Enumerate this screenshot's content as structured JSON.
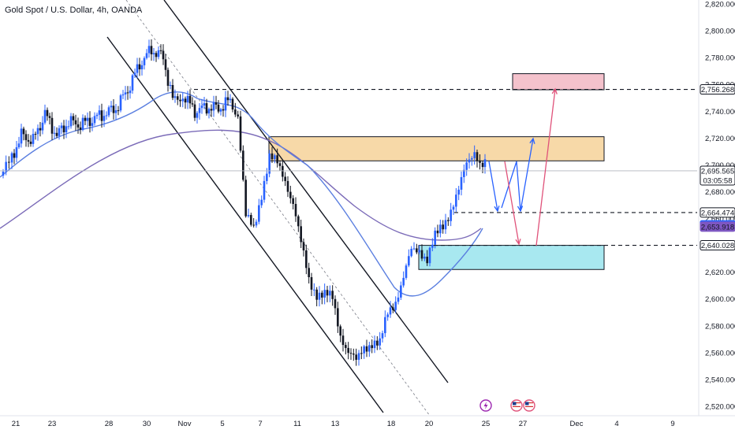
{
  "chart_data": {
    "type": "candlestick",
    "title": "Gold Spot / U.S. Dollar, 4h, OANDA",
    "ylim": [
      2520,
      2820
    ],
    "y_ticks": [
      2520,
      2540,
      2560,
      2580,
      2600,
      2620,
      2640,
      2660,
      2680,
      2700,
      2720,
      2740,
      2760,
      2780,
      2800,
      2820
    ],
    "x_tick_labels": [
      "21",
      "23",
      "28",
      "30",
      "Nov",
      "5",
      "7",
      "11",
      "13",
      "18",
      "20",
      "25",
      "27",
      "Dec",
      "4",
      "9"
    ],
    "price_labels": [
      {
        "value": 2756.268,
        "text": "2,756.268",
        "color": "#ffffff",
        "bg": "#ffffff"
      },
      {
        "value": 2695.565,
        "text": "2,695.565",
        "text2": "03:05:58",
        "color": "#ffffff",
        "bg": "#ffffff"
      },
      {
        "value": 2664.474,
        "text": "2,664.474",
        "color": "#ffffff",
        "bg": "#ffffff"
      },
      {
        "value": 2654.946,
        "text": "2,654.946",
        "color": "#2962ff",
        "bg": "#2962ff"
      },
      {
        "value": 2653.918,
        "text": "2,653.918",
        "color": "#7e57c2",
        "bg": "#7e57c2"
      },
      {
        "value": 2640.028,
        "text": "2,640.028",
        "color": "#ffffff",
        "bg": "#ffffff"
      }
    ],
    "current_price": 2695.565,
    "colors": {
      "up": "#2962ff",
      "down": "#131722",
      "ma_fast": "#5b7fe0",
      "ma_slow": "#7b6bb8",
      "supply_zone": "#f7d9a8",
      "target_zone": "#f4c2cc",
      "demand_zone": "#a8e8f0",
      "arrow_blue": "#2962ff",
      "arrow_red": "#e0527a"
    },
    "zones": [
      {
        "name": "supply",
        "y_from": 2703,
        "y_to": 2721
      },
      {
        "name": "target",
        "y_from": 2756,
        "y_to": 2768
      },
      {
        "name": "demand",
        "y_from": 2622,
        "y_to": 2640
      }
    ],
    "horizontal_levels": [
      2756.268,
      2664.474,
      2640.028
    ],
    "marker_icons": [
      "lightning-icon",
      "us-flag-icon",
      "us-flag-icon"
    ]
  }
}
